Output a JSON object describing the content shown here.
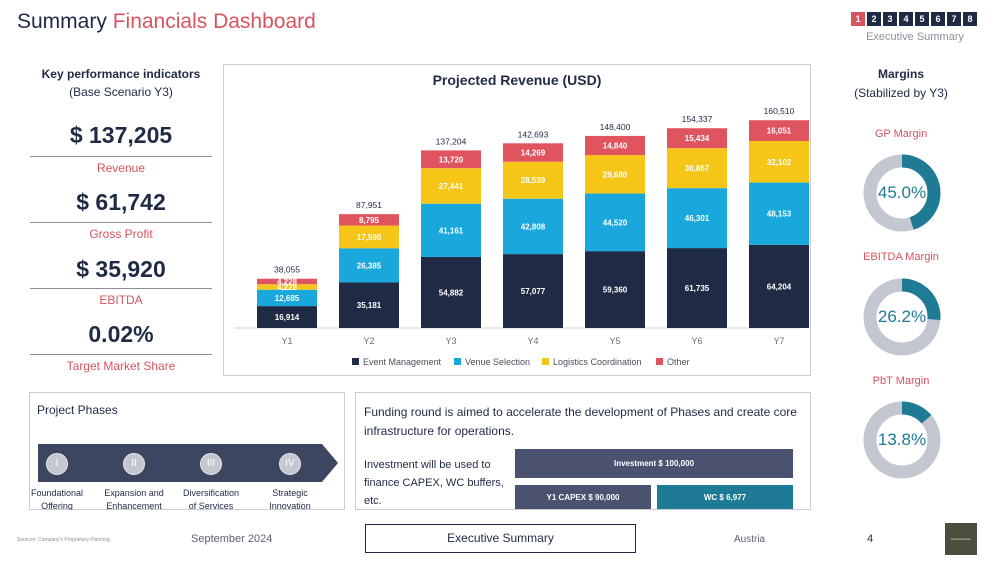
{
  "header": {
    "title_main": "Summary",
    "title_accent": "Financials Dashboard",
    "pages": [
      "1",
      "2",
      "3",
      "4",
      "5",
      "6",
      "7",
      "8"
    ],
    "active_page": "1",
    "section": "Executive Summary"
  },
  "kpis": {
    "title": "Key performance indicators",
    "subtitle": "(Base Scenario Y3)",
    "items": [
      {
        "value": "$ 137,205",
        "label": "Revenue"
      },
      {
        "value": "$ 61,742",
        "label": "Gross Profit"
      },
      {
        "value": "$ 35,920",
        "label": "EBITDA"
      },
      {
        "value": "0.02%",
        "label": "Target Market Share"
      }
    ]
  },
  "chart_data": {
    "type": "bar",
    "stacked": true,
    "title": "Projected Revenue (USD)",
    "categories": [
      "Y1",
      "Y2",
      "Y3",
      "Y4",
      "Y5",
      "Y6",
      "Y7"
    ],
    "series": [
      {
        "name": "Event Management",
        "color": "#1f2a44",
        "values": [
          16914,
          35181,
          54882,
          57077,
          59360,
          61735,
          64204
        ]
      },
      {
        "name": "Venue Selection",
        "color": "#1aa7dc",
        "values": [
          12685,
          26385,
          41161,
          42808,
          44520,
          46301,
          48153
        ]
      },
      {
        "name": "Logistics Coordination",
        "color": "#f5c518",
        "values": [
          4228,
          17590,
          27441,
          28539,
          29680,
          30867,
          32102
        ]
      },
      {
        "name": "Other",
        "color": "#e0545f",
        "values": [
          4228,
          8795,
          13720,
          14269,
          14840,
          15434,
          16051
        ]
      }
    ],
    "value_labels": [
      [
        "16,914",
        "35,181",
        "54,882",
        "57,077",
        "59,360",
        "61,735",
        "64,204"
      ],
      [
        "12,685",
        "26,385",
        "41,161",
        "42,808",
        "44,520",
        "46,301",
        "48,153"
      ],
      [
        "4,228",
        "17,590",
        "27,441",
        "28,539",
        "29,680",
        "30,867",
        "32,102"
      ],
      [
        "4,228",
        "8,795",
        "13,720",
        "14,269",
        "14,840",
        "15,434",
        "16,051"
      ]
    ],
    "totals": [
      "38,055",
      "87,951",
      "137,204",
      "142,693",
      "148,400",
      "154,337",
      "160,510"
    ],
    "ylim": [
      0,
      180000
    ],
    "legend_position": "bottom",
    "grid": false
  },
  "margins": {
    "title": "Margins",
    "subtitle": "(Stabilized by Y3)",
    "items": [
      {
        "label": "GP Margin",
        "value": "45.0%",
        "fraction": 0.45
      },
      {
        "label": "EBITDA Margin",
        "value": "26.2%",
        "fraction": 0.262
      },
      {
        "label": "PbT Margin",
        "value": "13.8%",
        "fraction": 0.138
      }
    ],
    "fill_color": "#1f7a96",
    "track_color": "#c2c7d0"
  },
  "phases": {
    "title": "Project Phases",
    "items": [
      {
        "numeral": "I",
        "line1": "Foundational",
        "line2": "Offering"
      },
      {
        "numeral": "II",
        "line1": "Expansion and",
        "line2": "Enhancement"
      },
      {
        "numeral": "III",
        "line1": "Diversification",
        "line2": "of Services"
      },
      {
        "numeral": "IV",
        "line1": "Strategic",
        "line2": "Innovation"
      }
    ]
  },
  "funding": {
    "text": "Funding round is aimed to accelerate the development of Phases and create core infrastructure for operations.",
    "invest_text": "Investment will be used to finance CAPEX, WC buffers, etc.",
    "investment": "Investment $ 100,000",
    "capex": "Y1 CAPEX $ 90,000",
    "wc": "WC $ 6,977"
  },
  "footer": {
    "source": "Sources: Company's Proprietary Planning",
    "date": "September 2024",
    "section": "Executive Summary",
    "country": "Austria",
    "page": "4",
    "logo_text": "EventVentures"
  }
}
